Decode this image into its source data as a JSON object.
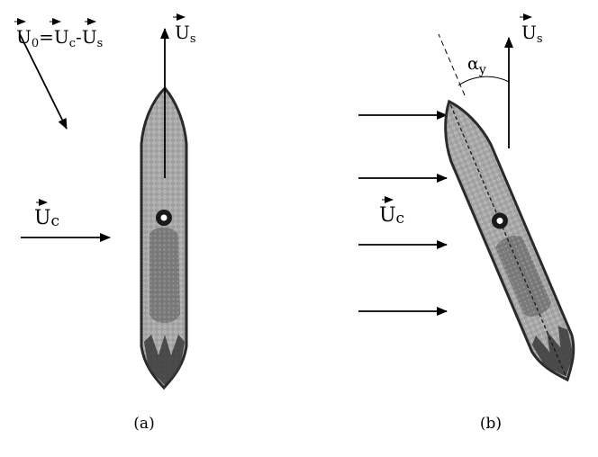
{
  "panel_a": {
    "caption": "(a)",
    "relative_velocity": {
      "vec": "U",
      "sub": "0",
      "eq": "=",
      "u1": "U",
      "s1": "c",
      "minus": "-",
      "u2": "U",
      "s2": "s"
    },
    "ship_velocity": {
      "vec": "U",
      "sub": "s"
    },
    "current": {
      "vec": "U",
      "sub": "c"
    }
  },
  "panel_b": {
    "caption": "(b)",
    "ship_velocity": {
      "vec": "U",
      "sub": "s"
    },
    "current": {
      "vec": "U",
      "sub": "c"
    },
    "yaw_angle": {
      "sym": "α",
      "sub": "y"
    }
  },
  "colors": {
    "ink": "#000000",
    "hull": "#8f8f8f",
    "hull_dark": "#2a2a2a",
    "hull_light": "#bdbdbd"
  }
}
